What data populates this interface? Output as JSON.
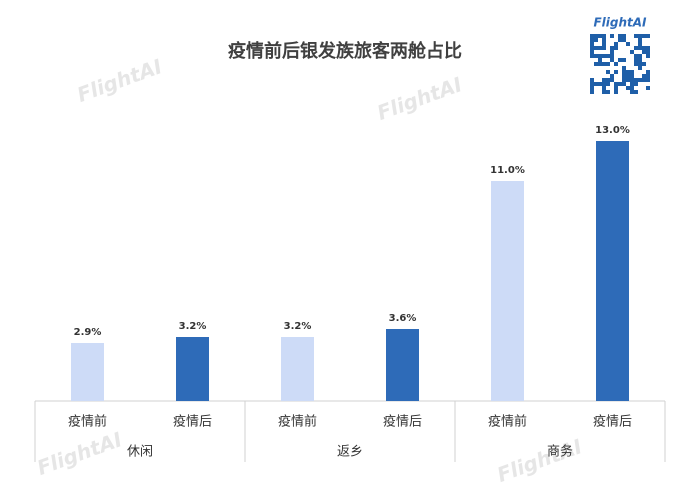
{
  "chart_data": {
    "type": "bar",
    "title": "疫情前后银发族旅客两舱占比",
    "logo": "FlightAI",
    "watermark": "FlightAI",
    "categories": [
      "休闲",
      "返乡",
      "商务"
    ],
    "series": [
      {
        "name": "疫情前",
        "color": "#cddbf7",
        "values": [
          2.9,
          3.2,
          11.0
        ],
        "value_labels": [
          "2.9%",
          "3.2%",
          "11.0%"
        ]
      },
      {
        "name": "疫情后",
        "color": "#2e6bb8",
        "values": [
          3.2,
          3.6,
          13.0
        ],
        "value_labels": [
          "3.2%",
          "3.6%",
          "13.0%"
        ]
      }
    ]
  }
}
